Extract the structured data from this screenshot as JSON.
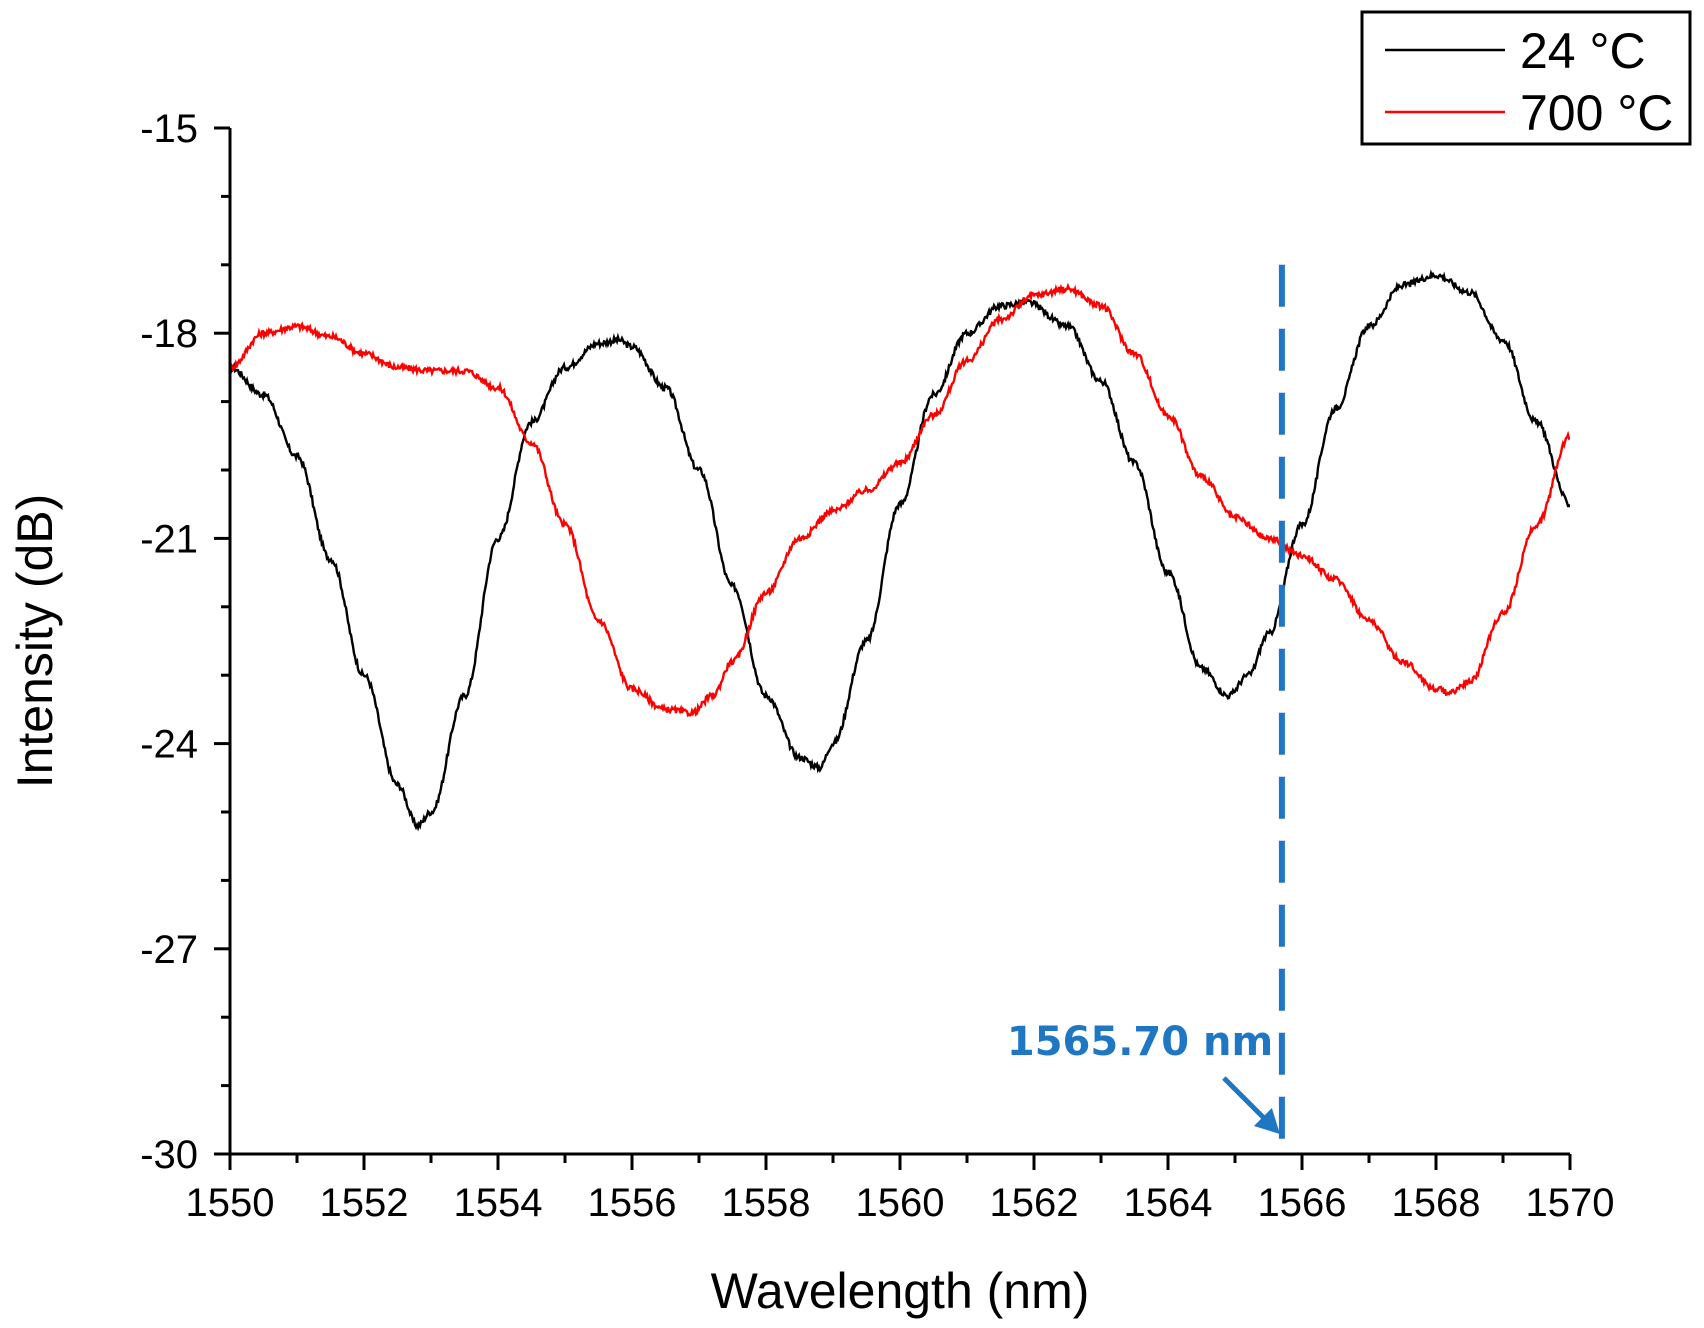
{
  "chart_data": {
    "type": "line",
    "xlabel": "Wavelength (nm)",
    "ylabel": "Intensity (dB)",
    "xlim": [
      1550,
      1570
    ],
    "ylim": [
      -30,
      -15
    ],
    "x_ticks": [
      1550,
      1552,
      1554,
      1556,
      1558,
      1560,
      1562,
      1564,
      1566,
      1568,
      1570
    ],
    "y_ticks": [
      -15,
      -18,
      -21,
      -24,
      -27,
      -30
    ],
    "grid": false,
    "legend_position": "top-right",
    "series": [
      {
        "name": "24 °C",
        "color": "#000000",
        "x": [
          1550.0,
          1550.5,
          1551.0,
          1551.5,
          1552.0,
          1552.5,
          1552.8,
          1553.0,
          1553.5,
          1554.0,
          1554.5,
          1555.0,
          1555.5,
          1555.8,
          1556.0,
          1556.5,
          1557.0,
          1557.5,
          1558.0,
          1558.5,
          1558.8,
          1559.0,
          1559.5,
          1560.0,
          1560.5,
          1561.0,
          1561.5,
          1561.9,
          1562.5,
          1563.0,
          1563.5,
          1564.0,
          1564.5,
          1564.9,
          1565.2,
          1565.5,
          1566.0,
          1566.5,
          1567.0,
          1567.5,
          1568.0,
          1568.5,
          1569.0,
          1569.5,
          1570.0
        ],
        "y": [
          -18.5,
          -18.9,
          -19.8,
          -21.3,
          -23.0,
          -24.6,
          -25.2,
          -25.0,
          -23.3,
          -21.0,
          -19.3,
          -18.5,
          -18.15,
          -18.1,
          -18.2,
          -18.8,
          -20.0,
          -21.7,
          -23.3,
          -24.2,
          -24.35,
          -24.0,
          -22.5,
          -20.5,
          -18.9,
          -18.0,
          -17.6,
          -17.55,
          -17.9,
          -18.7,
          -19.9,
          -21.5,
          -22.9,
          -23.3,
          -23.0,
          -22.4,
          -20.8,
          -19.1,
          -17.9,
          -17.3,
          -17.15,
          -17.4,
          -18.1,
          -19.3,
          -20.5
        ]
      },
      {
        "name": "700 °C",
        "color": "#ff0000",
        "x": [
          1550.0,
          1550.5,
          1551.0,
          1551.5,
          1552.0,
          1552.5,
          1553.0,
          1553.5,
          1554.0,
          1554.5,
          1555.0,
          1555.5,
          1556.0,
          1556.5,
          1556.9,
          1557.2,
          1557.5,
          1558.0,
          1558.5,
          1559.0,
          1559.5,
          1560.0,
          1560.5,
          1561.0,
          1561.5,
          1562.0,
          1562.5,
          1563.0,
          1563.5,
          1564.0,
          1564.5,
          1565.0,
          1565.5,
          1566.0,
          1566.5,
          1567.0,
          1567.5,
          1568.0,
          1568.2,
          1568.5,
          1569.0,
          1569.5,
          1570.0
        ],
        "y": [
          -18.5,
          -18.0,
          -17.9,
          -18.05,
          -18.3,
          -18.5,
          -18.55,
          -18.55,
          -18.8,
          -19.6,
          -20.8,
          -22.2,
          -23.2,
          -23.5,
          -23.55,
          -23.3,
          -22.8,
          -21.8,
          -21.0,
          -20.6,
          -20.3,
          -19.9,
          -19.2,
          -18.4,
          -17.8,
          -17.45,
          -17.35,
          -17.6,
          -18.3,
          -19.2,
          -20.1,
          -20.7,
          -21.0,
          -21.25,
          -21.6,
          -22.2,
          -22.8,
          -23.2,
          -23.25,
          -23.1,
          -22.1,
          -20.8,
          -19.5
        ]
      }
    ],
    "annotations": [
      {
        "text": "1565.70 nm",
        "x": 1565.7,
        "color": "#1f77c4",
        "style": "dashed vertical line with arrow"
      }
    ]
  }
}
